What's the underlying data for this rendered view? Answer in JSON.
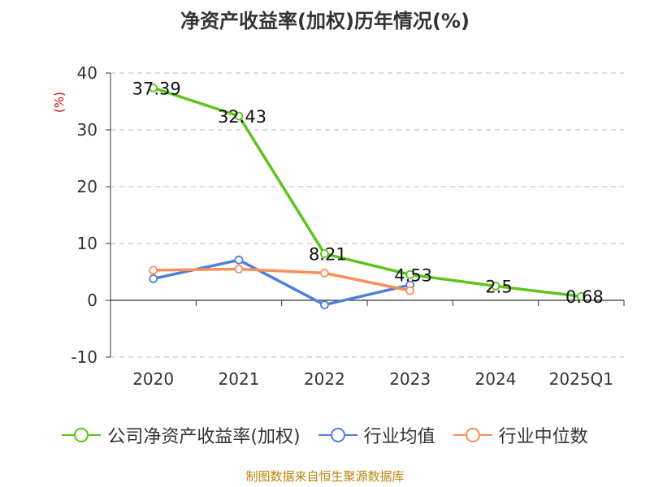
{
  "chart_data": {
    "type": "line",
    "title": "净资产收益率(加权)历年情况(%)",
    "ylabel": "(%)",
    "xlabel": "",
    "categories": [
      "2020",
      "2021",
      "2022",
      "2023",
      "2024",
      "2025Q1"
    ],
    "ylim": [
      -10,
      40
    ],
    "yticks": [
      -10,
      0,
      10,
      20,
      30,
      40
    ],
    "grid": true,
    "legend_position": "bottom",
    "series": [
      {
        "name": "公司净资产收益率(加权)",
        "color": "#5cc41c",
        "values": [
          37.39,
          32.43,
          8.21,
          4.53,
          2.5,
          0.68
        ],
        "labels": [
          "37.39",
          "32.43",
          "8.21",
          "4.53",
          "2.5",
          "0.68"
        ]
      },
      {
        "name": "行业均值",
        "color": "#4f7fd9",
        "values": [
          3.8,
          7.1,
          -0.8,
          2.7,
          null,
          null
        ]
      },
      {
        "name": "行业中位数",
        "color": "#f7905a",
        "values": [
          5.3,
          5.5,
          4.8,
          1.7,
          null,
          null
        ]
      }
    ]
  },
  "source_note": "制图数据来自恒生聚源数据库"
}
